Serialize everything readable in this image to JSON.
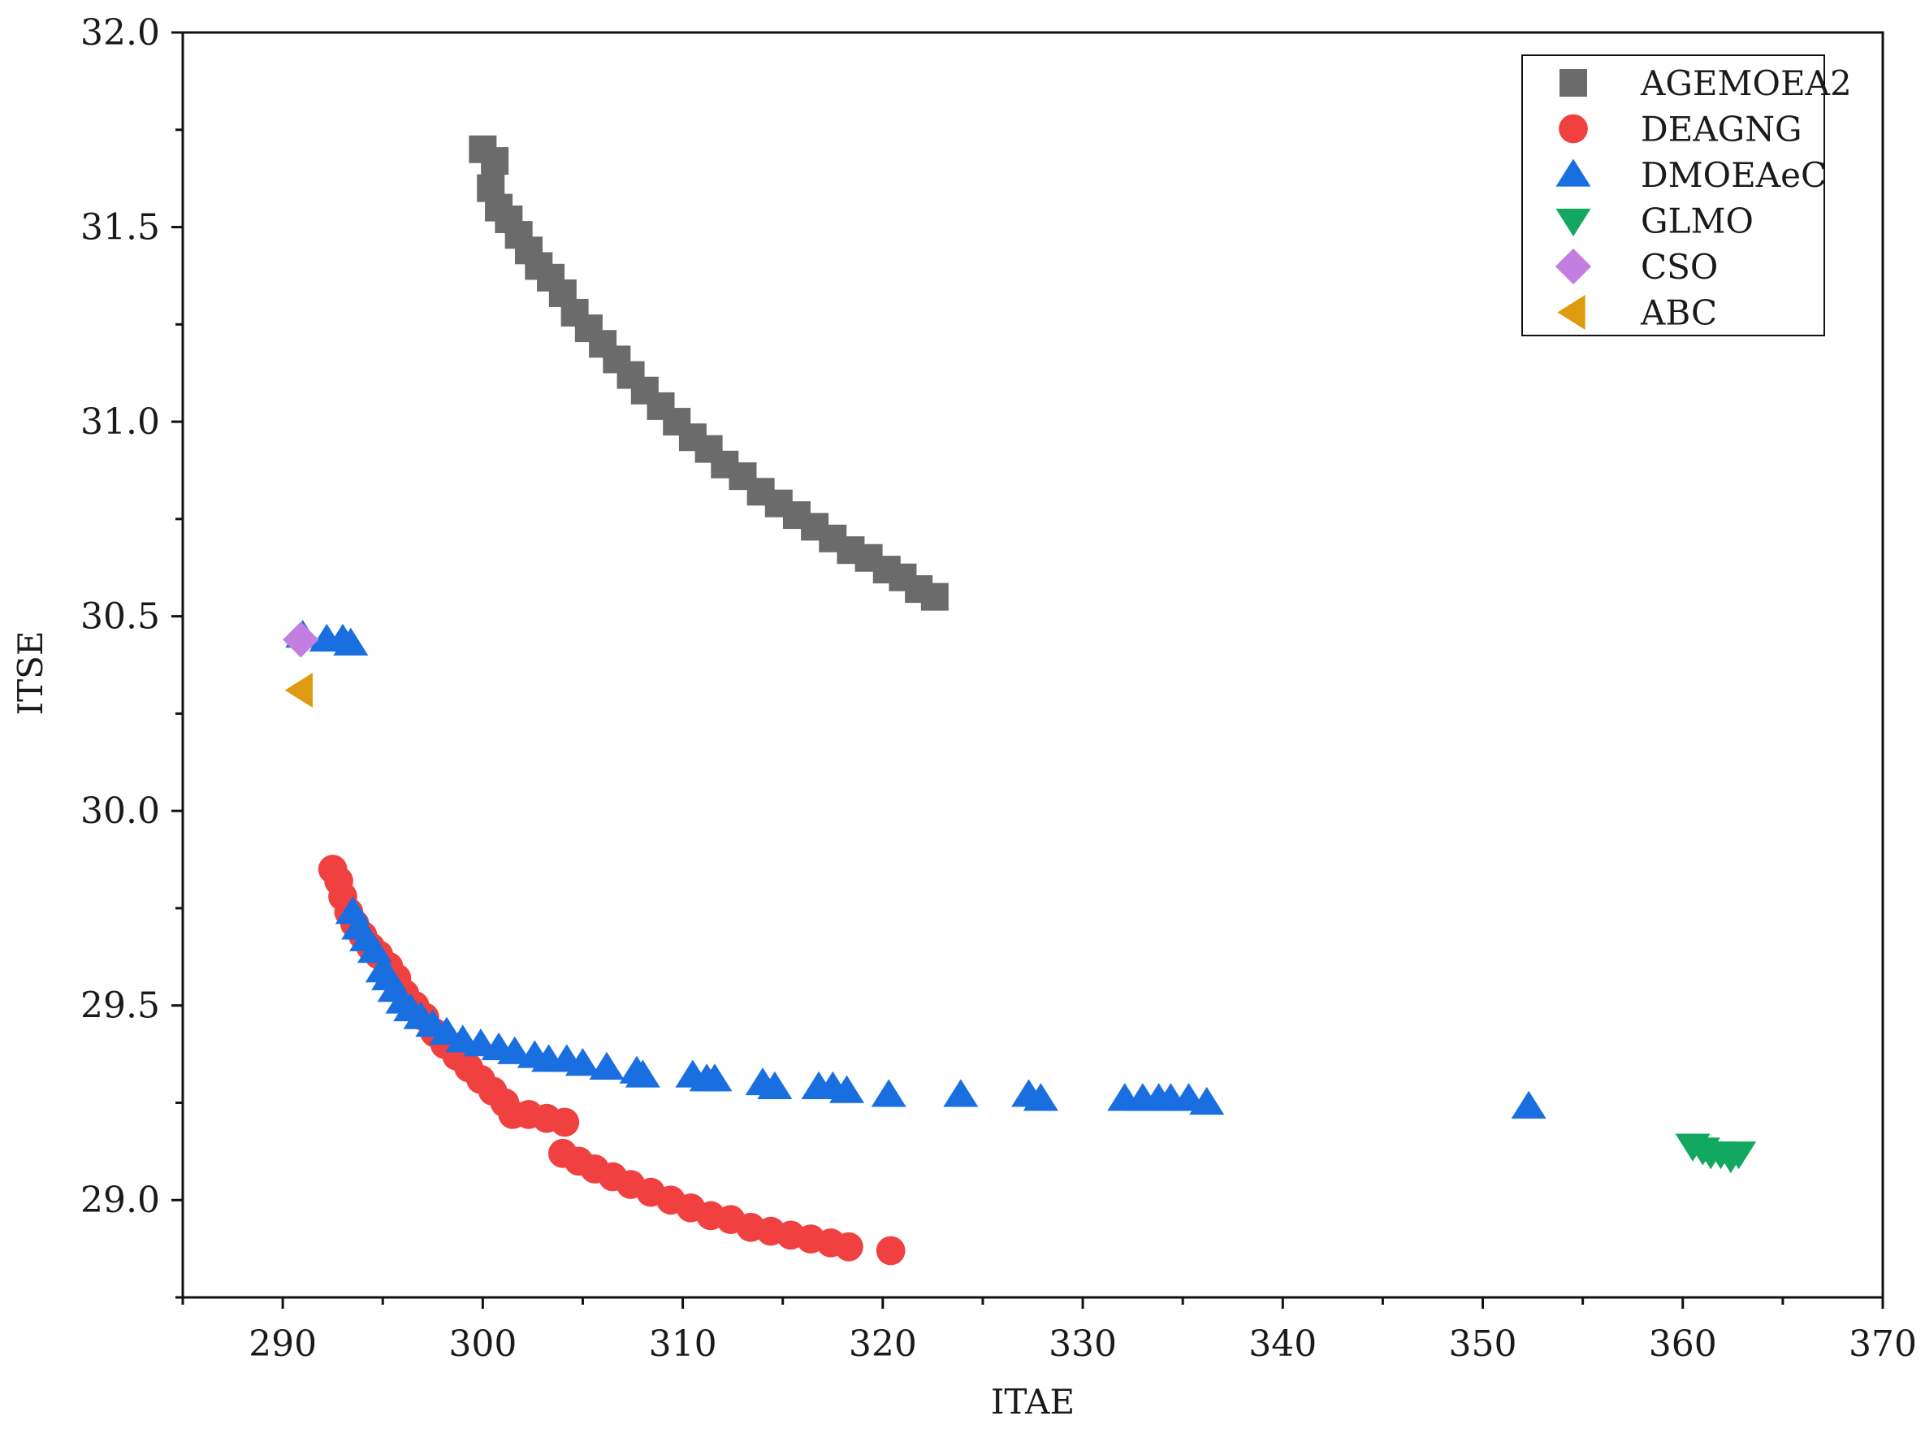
{
  "chart_data": {
    "type": "scatter",
    "title": "",
    "xlabel": "ITAE",
    "ylabel": "ITSE",
    "xlim": [
      285,
      370
    ],
    "ylim": [
      28.75,
      32.0
    ],
    "x_ticks": [
      290,
      300,
      310,
      320,
      330,
      340,
      350,
      360,
      370
    ],
    "y_ticks": [
      29.0,
      29.5,
      30.0,
      30.5,
      31.0,
      31.5,
      32.0
    ],
    "x_tick_labels": [
      "290",
      "300",
      "310",
      "320",
      "330",
      "340",
      "350",
      "360",
      "370"
    ],
    "y_tick_labels": [
      "29.0",
      "29.5",
      "30.0",
      "30.5",
      "31.0",
      "31.5",
      "32.0"
    ],
    "grid": false,
    "legend_position": "top-right",
    "series": [
      {
        "name": "AGEMOEA2",
        "marker": "square",
        "color": "#6b6b6b",
        "points": [
          [
            300.0,
            31.7
          ],
          [
            300.6,
            31.67
          ],
          [
            300.4,
            31.6
          ],
          [
            300.8,
            31.55
          ],
          [
            301.3,
            31.52
          ],
          [
            301.8,
            31.48
          ],
          [
            302.3,
            31.44
          ],
          [
            302.8,
            31.4
          ],
          [
            303.4,
            31.37
          ],
          [
            304.0,
            31.33
          ],
          [
            304.6,
            31.28
          ],
          [
            305.3,
            31.24
          ],
          [
            306.0,
            31.2
          ],
          [
            306.7,
            31.16
          ],
          [
            307.4,
            31.12
          ],
          [
            308.1,
            31.08
          ],
          [
            308.9,
            31.04
          ],
          [
            309.7,
            31.0
          ],
          [
            310.5,
            30.96
          ],
          [
            311.3,
            30.93
          ],
          [
            312.1,
            30.89
          ],
          [
            313.0,
            30.86
          ],
          [
            313.9,
            30.82
          ],
          [
            314.8,
            30.79
          ],
          [
            315.7,
            30.76
          ],
          [
            316.6,
            30.73
          ],
          [
            317.5,
            30.7
          ],
          [
            318.4,
            30.67
          ],
          [
            319.3,
            30.65
          ],
          [
            320.2,
            30.62
          ],
          [
            321.0,
            30.6
          ],
          [
            321.8,
            30.57
          ],
          [
            322.6,
            30.55
          ]
        ]
      },
      {
        "name": "DEAGNG",
        "marker": "circle",
        "color": "#f04040",
        "points": [
          [
            292.5,
            29.85
          ],
          [
            292.8,
            29.82
          ],
          [
            293.0,
            29.78
          ],
          [
            293.3,
            29.74
          ],
          [
            293.6,
            29.71
          ],
          [
            294.0,
            29.68
          ],
          [
            294.4,
            29.65
          ],
          [
            294.8,
            29.63
          ],
          [
            295.3,
            29.6
          ],
          [
            295.7,
            29.57
          ],
          [
            296.1,
            29.53
          ],
          [
            296.6,
            29.5
          ],
          [
            297.1,
            29.47
          ],
          [
            297.6,
            29.43
          ],
          [
            298.1,
            29.4
          ],
          [
            298.7,
            29.37
          ],
          [
            299.3,
            29.34
          ],
          [
            299.9,
            29.31
          ],
          [
            300.5,
            29.28
          ],
          [
            301.1,
            29.25
          ],
          [
            301.5,
            29.22
          ],
          [
            302.3,
            29.22
          ],
          [
            303.2,
            29.21
          ],
          [
            304.1,
            29.2
          ],
          [
            304.0,
            29.12
          ],
          [
            304.8,
            29.1
          ],
          [
            305.6,
            29.08
          ],
          [
            306.5,
            29.06
          ],
          [
            307.4,
            29.04
          ],
          [
            308.4,
            29.02
          ],
          [
            309.4,
            29.0
          ],
          [
            310.4,
            28.98
          ],
          [
            311.4,
            28.96
          ],
          [
            312.4,
            28.95
          ],
          [
            313.4,
            28.93
          ],
          [
            314.4,
            28.92
          ],
          [
            315.4,
            28.91
          ],
          [
            316.4,
            28.9
          ],
          [
            317.4,
            28.89
          ],
          [
            318.3,
            28.88
          ],
          [
            320.4,
            28.87
          ]
        ]
      },
      {
        "name": "DMOEAeC",
        "marker": "triangle-up",
        "color": "#1a6fe0",
        "points": [
          [
            291.0,
            30.45
          ],
          [
            292.2,
            30.44
          ],
          [
            293.0,
            30.44
          ],
          [
            293.4,
            30.43
          ],
          [
            293.5,
            29.74
          ],
          [
            293.8,
            29.7
          ],
          [
            294.2,
            29.67
          ],
          [
            294.6,
            29.64
          ],
          [
            295.0,
            29.59
          ],
          [
            295.3,
            29.57
          ],
          [
            295.6,
            29.54
          ],
          [
            296.0,
            29.51
          ],
          [
            296.4,
            29.49
          ],
          [
            296.9,
            29.47
          ],
          [
            297.5,
            29.45
          ],
          [
            298.2,
            29.43
          ],
          [
            299.0,
            29.41
          ],
          [
            299.9,
            29.4
          ],
          [
            300.8,
            29.39
          ],
          [
            301.6,
            29.38
          ],
          [
            302.6,
            29.37
          ],
          [
            303.3,
            29.36
          ],
          [
            304.2,
            29.36
          ],
          [
            305.0,
            29.35
          ],
          [
            306.2,
            29.34
          ],
          [
            307.7,
            29.33
          ],
          [
            308.0,
            29.32
          ],
          [
            310.5,
            29.32
          ],
          [
            311.2,
            29.31
          ],
          [
            311.6,
            29.31
          ],
          [
            314.0,
            29.3
          ],
          [
            314.6,
            29.29
          ],
          [
            316.8,
            29.29
          ],
          [
            317.5,
            29.29
          ],
          [
            318.2,
            29.28
          ],
          [
            320.3,
            29.27
          ],
          [
            323.9,
            29.27
          ],
          [
            327.3,
            29.27
          ],
          [
            327.9,
            29.26
          ],
          [
            332.1,
            29.26
          ],
          [
            333.0,
            29.26
          ],
          [
            333.8,
            29.26
          ],
          [
            334.4,
            29.26
          ],
          [
            335.3,
            29.26
          ],
          [
            336.2,
            29.25
          ],
          [
            352.3,
            29.24
          ]
        ]
      },
      {
        "name": "GLMO",
        "marker": "triangle-down",
        "color": "#12a860",
        "points": [
          [
            360.5,
            29.14
          ],
          [
            361.0,
            29.13
          ],
          [
            361.4,
            29.12
          ],
          [
            361.9,
            29.12
          ],
          [
            362.4,
            29.11
          ],
          [
            362.8,
            29.12
          ]
        ]
      },
      {
        "name": "CSO",
        "marker": "diamond",
        "color": "#c27ee0",
        "points": [
          [
            290.9,
            30.44
          ]
        ]
      },
      {
        "name": "ABC",
        "marker": "triangle-left",
        "color": "#de9a10",
        "points": [
          [
            290.9,
            30.31
          ]
        ]
      }
    ]
  }
}
